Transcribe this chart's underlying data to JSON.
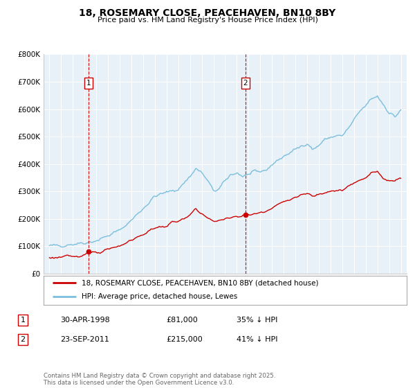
{
  "title": "18, ROSEMARY CLOSE, PEACEHAVEN, BN10 8BY",
  "subtitle": "Price paid vs. HM Land Registry's House Price Index (HPI)",
  "hpi_color": "#7bbfde",
  "price_color": "#cc0000",
  "plot_bg_color": "#e8f0f8",
  "grid_color": "#ffffff",
  "marker1_date": 1998.33,
  "marker1_price": 81000,
  "marker2_date": 2011.73,
  "marker2_price": 215000,
  "legend_line1": "18, ROSEMARY CLOSE, PEACEHAVEN, BN10 8BY (detached house)",
  "legend_line2": "HPI: Average price, detached house, Lewes",
  "ann1_box": "1",
  "ann1_date": "30-APR-1998",
  "ann1_price": "£81,000",
  "ann1_pct": "35% ↓ HPI",
  "ann2_box": "2",
  "ann2_date": "23-SEP-2011",
  "ann2_price": "£215,000",
  "ann2_pct": "41% ↓ HPI",
  "footer": "Contains HM Land Registry data © Crown copyright and database right 2025.\nThis data is licensed under the Open Government Licence v3.0.",
  "ylim": [
    0,
    800000
  ],
  "xlim": [
    1994.5,
    2025.5
  ],
  "yticks": [
    0,
    100000,
    200000,
    300000,
    400000,
    500000,
    600000,
    700000,
    800000
  ],
  "ytick_labels": [
    "£0",
    "£100K",
    "£200K",
    "£300K",
    "£400K",
    "£500K",
    "£600K",
    "£700K",
    "£800K"
  ],
  "xticks": [
    1995,
    1996,
    1997,
    1998,
    1999,
    2000,
    2001,
    2002,
    2003,
    2004,
    2005,
    2006,
    2007,
    2008,
    2009,
    2010,
    2011,
    2012,
    2013,
    2014,
    2015,
    2016,
    2017,
    2018,
    2019,
    2020,
    2021,
    2022,
    2023,
    2024,
    2025
  ],
  "hpi_keypoints": [
    [
      1995.0,
      100000
    ],
    [
      1996.0,
      103000
    ],
    [
      1997.0,
      108000
    ],
    [
      1998.0,
      113000
    ],
    [
      1999.0,
      120000
    ],
    [
      2000.0,
      138000
    ],
    [
      2001.0,
      158000
    ],
    [
      2002.0,
      195000
    ],
    [
      2003.0,
      238000
    ],
    [
      2004.0,
      282000
    ],
    [
      2005.0,
      296000
    ],
    [
      2006.0,
      308000
    ],
    [
      2007.0,
      355000
    ],
    [
      2007.5,
      383000
    ],
    [
      2008.0,
      368000
    ],
    [
      2008.5,
      338000
    ],
    [
      2009.0,
      302000
    ],
    [
      2009.5,
      308000
    ],
    [
      2010.0,
      338000
    ],
    [
      2010.5,
      362000
    ],
    [
      2011.0,
      368000
    ],
    [
      2011.5,
      355000
    ],
    [
      2012.0,
      362000
    ],
    [
      2012.5,
      368000
    ],
    [
      2013.0,
      372000
    ],
    [
      2013.5,
      378000
    ],
    [
      2014.0,
      398000
    ],
    [
      2015.0,
      428000
    ],
    [
      2016.0,
      452000
    ],
    [
      2017.0,
      478000
    ],
    [
      2017.5,
      452000
    ],
    [
      2018.0,
      468000
    ],
    [
      2018.5,
      488000
    ],
    [
      2019.0,
      498000
    ],
    [
      2019.5,
      502000
    ],
    [
      2020.0,
      502000
    ],
    [
      2020.5,
      528000
    ],
    [
      2021.0,
      558000
    ],
    [
      2021.5,
      592000
    ],
    [
      2022.0,
      612000
    ],
    [
      2022.5,
      638000
    ],
    [
      2023.0,
      648000
    ],
    [
      2023.5,
      618000
    ],
    [
      2024.0,
      588000
    ],
    [
      2024.5,
      572000
    ],
    [
      2025.0,
      598000
    ]
  ],
  "price_keypoints": [
    [
      1995.0,
      58000
    ],
    [
      1996.0,
      60000
    ],
    [
      1997.0,
      63000
    ],
    [
      1997.5,
      66000
    ],
    [
      1998.0,
      68000
    ],
    [
      1998.33,
      81000
    ],
    [
      1999.0,
      73000
    ],
    [
      1999.5,
      76000
    ],
    [
      2000.0,
      88000
    ],
    [
      2001.0,
      102000
    ],
    [
      2002.0,
      122000
    ],
    [
      2003.0,
      142000
    ],
    [
      2004.0,
      168000
    ],
    [
      2005.0,
      172000
    ],
    [
      2005.5,
      188000
    ],
    [
      2006.0,
      192000
    ],
    [
      2006.5,
      198000
    ],
    [
      2007.0,
      212000
    ],
    [
      2007.5,
      238000
    ],
    [
      2008.0,
      218000
    ],
    [
      2008.5,
      202000
    ],
    [
      2009.0,
      192000
    ],
    [
      2009.5,
      193000
    ],
    [
      2010.0,
      198000
    ],
    [
      2010.5,
      208000
    ],
    [
      2011.0,
      208000
    ],
    [
      2011.73,
      215000
    ],
    [
      2012.0,
      213000
    ],
    [
      2012.5,
      218000
    ],
    [
      2013.0,
      222000
    ],
    [
      2013.5,
      228000
    ],
    [
      2014.0,
      242000
    ],
    [
      2015.0,
      262000
    ],
    [
      2016.0,
      278000
    ],
    [
      2017.0,
      292000
    ],
    [
      2017.5,
      282000
    ],
    [
      2018.0,
      292000
    ],
    [
      2018.5,
      298000
    ],
    [
      2019.0,
      302000
    ],
    [
      2019.5,
      302000
    ],
    [
      2020.0,
      302000
    ],
    [
      2020.5,
      318000
    ],
    [
      2021.0,
      328000
    ],
    [
      2021.5,
      342000
    ],
    [
      2022.0,
      352000
    ],
    [
      2022.5,
      368000
    ],
    [
      2023.0,
      372000
    ],
    [
      2023.5,
      348000
    ],
    [
      2024.0,
      338000
    ],
    [
      2024.5,
      342000
    ],
    [
      2025.0,
      352000
    ]
  ],
  "hpi_noise_seed": 42,
  "price_noise_seed": 123
}
